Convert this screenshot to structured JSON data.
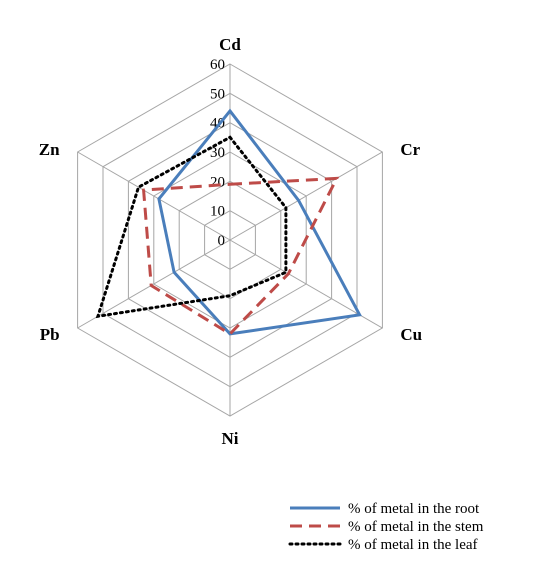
{
  "chart_data": {
    "type": "radar",
    "axes": [
      "Cd",
      "Cr",
      "Cu",
      "Ni",
      "Pb",
      "Zn"
    ],
    "rlim": [
      0,
      60
    ],
    "ticks": [
      "0",
      "10",
      "20",
      "30",
      "40",
      "50",
      "60"
    ],
    "tick_values": [
      0,
      10,
      20,
      30,
      40,
      50,
      60
    ],
    "grid": true,
    "legend_position": "bottom-right",
    "series": [
      {
        "name": "% of metal in the root",
        "values": [
          44,
          27,
          51,
          32,
          22,
          28
        ],
        "color": "#4a7ebb",
        "style": "solid"
      },
      {
        "name": "% of metal in the stem",
        "values": [
          19,
          42,
          23,
          32,
          31,
          34
        ],
        "color": "#be4b48",
        "style": "dashed"
      },
      {
        "name": "% of metal in the leaf",
        "values": [
          35,
          22,
          22,
          19,
          52,
          36
        ],
        "color": "#000000",
        "style": "dotted"
      }
    ]
  }
}
